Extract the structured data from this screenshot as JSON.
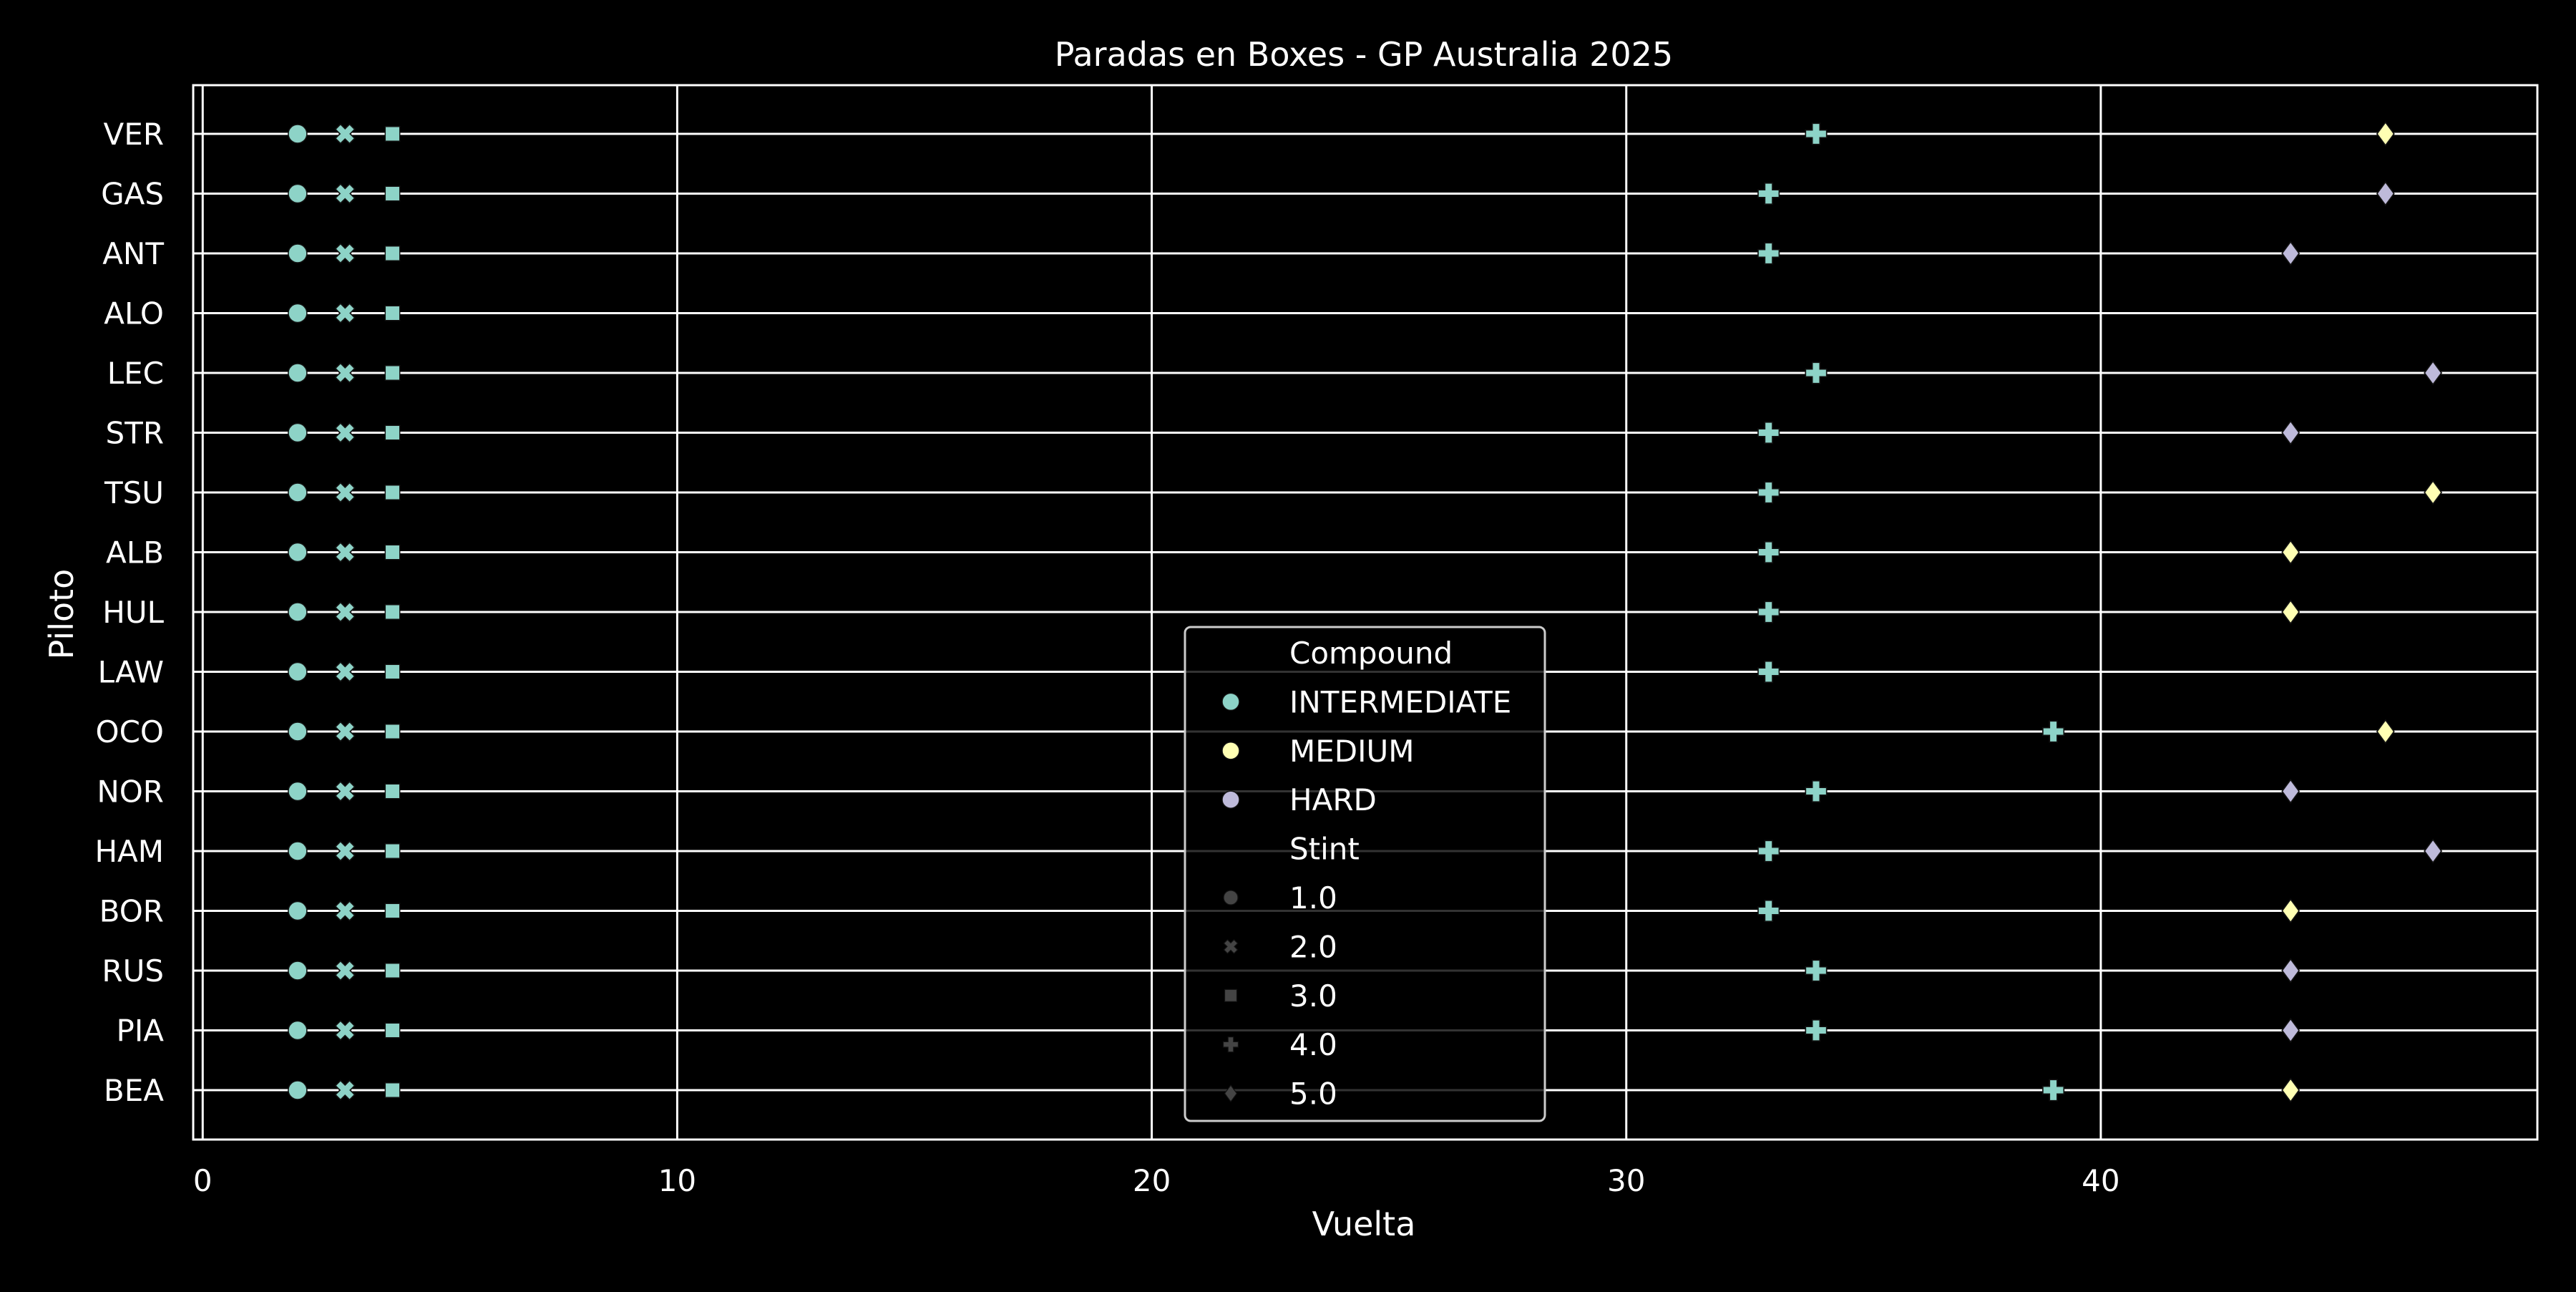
{
  "chart_data": {
    "type": "scatter",
    "title": "Paradas en Boxes - GP Australia 2025",
    "xlabel": "Vuelta",
    "ylabel": "Piloto",
    "xlim": [
      -0.2,
      49.2
    ],
    "xticks": [
      0,
      10,
      20,
      30,
      40
    ],
    "grid": true,
    "legend_placement": "lower-center",
    "categories": [
      "VER",
      "GAS",
      "ANT",
      "ALO",
      "LEC",
      "STR",
      "TSU",
      "ALB",
      "HUL",
      "LAW",
      "OCO",
      "NOR",
      "HAM",
      "BOR",
      "RUS",
      "PIA",
      "BEA"
    ],
    "colors": {
      "INTERMEDIATE": "#8dd3c7",
      "MEDIUM": "#ffffb3",
      "HARD": "#bebada",
      "background": "#000000",
      "foreground": "#ffffff"
    },
    "legend": {
      "compound_title": "Compound",
      "compounds": [
        "INTERMEDIATE",
        "MEDIUM",
        "HARD"
      ],
      "stint_title": "Stint",
      "stints": [
        {
          "label": "1.0",
          "marker": "circle"
        },
        {
          "label": "2.0",
          "marker": "x"
        },
        {
          "label": "3.0",
          "marker": "square"
        },
        {
          "label": "4.0",
          "marker": "plus"
        },
        {
          "label": "5.0",
          "marker": "diamond"
        }
      ]
    },
    "points": [
      {
        "driver": "VER",
        "lap": 2,
        "stint": 1,
        "compound": "INTERMEDIATE"
      },
      {
        "driver": "VER",
        "lap": 3,
        "stint": 2,
        "compound": "INTERMEDIATE"
      },
      {
        "driver": "VER",
        "lap": 4,
        "stint": 3,
        "compound": "INTERMEDIATE"
      },
      {
        "driver": "VER",
        "lap": 34,
        "stint": 4,
        "compound": "INTERMEDIATE"
      },
      {
        "driver": "VER",
        "lap": 46,
        "stint": 5,
        "compound": "MEDIUM"
      },
      {
        "driver": "GAS",
        "lap": 2,
        "stint": 1,
        "compound": "INTERMEDIATE"
      },
      {
        "driver": "GAS",
        "lap": 3,
        "stint": 2,
        "compound": "INTERMEDIATE"
      },
      {
        "driver": "GAS",
        "lap": 4,
        "stint": 3,
        "compound": "INTERMEDIATE"
      },
      {
        "driver": "GAS",
        "lap": 33,
        "stint": 4,
        "compound": "INTERMEDIATE"
      },
      {
        "driver": "GAS",
        "lap": 46,
        "stint": 5,
        "compound": "HARD"
      },
      {
        "driver": "ANT",
        "lap": 2,
        "stint": 1,
        "compound": "INTERMEDIATE"
      },
      {
        "driver": "ANT",
        "lap": 3,
        "stint": 2,
        "compound": "INTERMEDIATE"
      },
      {
        "driver": "ANT",
        "lap": 4,
        "stint": 3,
        "compound": "INTERMEDIATE"
      },
      {
        "driver": "ANT",
        "lap": 33,
        "stint": 4,
        "compound": "INTERMEDIATE"
      },
      {
        "driver": "ANT",
        "lap": 44,
        "stint": 5,
        "compound": "HARD"
      },
      {
        "driver": "ALO",
        "lap": 2,
        "stint": 1,
        "compound": "INTERMEDIATE"
      },
      {
        "driver": "ALO",
        "lap": 3,
        "stint": 2,
        "compound": "INTERMEDIATE"
      },
      {
        "driver": "ALO",
        "lap": 4,
        "stint": 3,
        "compound": "INTERMEDIATE"
      },
      {
        "driver": "LEC",
        "lap": 2,
        "stint": 1,
        "compound": "INTERMEDIATE"
      },
      {
        "driver": "LEC",
        "lap": 3,
        "stint": 2,
        "compound": "INTERMEDIATE"
      },
      {
        "driver": "LEC",
        "lap": 4,
        "stint": 3,
        "compound": "INTERMEDIATE"
      },
      {
        "driver": "LEC",
        "lap": 34,
        "stint": 4,
        "compound": "INTERMEDIATE"
      },
      {
        "driver": "LEC",
        "lap": 47,
        "stint": 5,
        "compound": "HARD"
      },
      {
        "driver": "STR",
        "lap": 2,
        "stint": 1,
        "compound": "INTERMEDIATE"
      },
      {
        "driver": "STR",
        "lap": 3,
        "stint": 2,
        "compound": "INTERMEDIATE"
      },
      {
        "driver": "STR",
        "lap": 4,
        "stint": 3,
        "compound": "INTERMEDIATE"
      },
      {
        "driver": "STR",
        "lap": 33,
        "stint": 4,
        "compound": "INTERMEDIATE"
      },
      {
        "driver": "STR",
        "lap": 44,
        "stint": 5,
        "compound": "HARD"
      },
      {
        "driver": "TSU",
        "lap": 2,
        "stint": 1,
        "compound": "INTERMEDIATE"
      },
      {
        "driver": "TSU",
        "lap": 3,
        "stint": 2,
        "compound": "INTERMEDIATE"
      },
      {
        "driver": "TSU",
        "lap": 4,
        "stint": 3,
        "compound": "INTERMEDIATE"
      },
      {
        "driver": "TSU",
        "lap": 33,
        "stint": 4,
        "compound": "INTERMEDIATE"
      },
      {
        "driver": "TSU",
        "lap": 47,
        "stint": 5,
        "compound": "MEDIUM"
      },
      {
        "driver": "ALB",
        "lap": 2,
        "stint": 1,
        "compound": "INTERMEDIATE"
      },
      {
        "driver": "ALB",
        "lap": 3,
        "stint": 2,
        "compound": "INTERMEDIATE"
      },
      {
        "driver": "ALB",
        "lap": 4,
        "stint": 3,
        "compound": "INTERMEDIATE"
      },
      {
        "driver": "ALB",
        "lap": 33,
        "stint": 4,
        "compound": "INTERMEDIATE"
      },
      {
        "driver": "ALB",
        "lap": 44,
        "stint": 5,
        "compound": "MEDIUM"
      },
      {
        "driver": "HUL",
        "lap": 2,
        "stint": 1,
        "compound": "INTERMEDIATE"
      },
      {
        "driver": "HUL",
        "lap": 3,
        "stint": 2,
        "compound": "INTERMEDIATE"
      },
      {
        "driver": "HUL",
        "lap": 4,
        "stint": 3,
        "compound": "INTERMEDIATE"
      },
      {
        "driver": "HUL",
        "lap": 33,
        "stint": 4,
        "compound": "INTERMEDIATE"
      },
      {
        "driver": "HUL",
        "lap": 44,
        "stint": 5,
        "compound": "MEDIUM"
      },
      {
        "driver": "LAW",
        "lap": 2,
        "stint": 1,
        "compound": "INTERMEDIATE"
      },
      {
        "driver": "LAW",
        "lap": 3,
        "stint": 2,
        "compound": "INTERMEDIATE"
      },
      {
        "driver": "LAW",
        "lap": 4,
        "stint": 3,
        "compound": "INTERMEDIATE"
      },
      {
        "driver": "LAW",
        "lap": 33,
        "stint": 4,
        "compound": "INTERMEDIATE"
      },
      {
        "driver": "OCO",
        "lap": 2,
        "stint": 1,
        "compound": "INTERMEDIATE"
      },
      {
        "driver": "OCO",
        "lap": 3,
        "stint": 2,
        "compound": "INTERMEDIATE"
      },
      {
        "driver": "OCO",
        "lap": 4,
        "stint": 3,
        "compound": "INTERMEDIATE"
      },
      {
        "driver": "OCO",
        "lap": 39,
        "stint": 4,
        "compound": "INTERMEDIATE"
      },
      {
        "driver": "OCO",
        "lap": 46,
        "stint": 5,
        "compound": "MEDIUM"
      },
      {
        "driver": "NOR",
        "lap": 2,
        "stint": 1,
        "compound": "INTERMEDIATE"
      },
      {
        "driver": "NOR",
        "lap": 3,
        "stint": 2,
        "compound": "INTERMEDIATE"
      },
      {
        "driver": "NOR",
        "lap": 4,
        "stint": 3,
        "compound": "INTERMEDIATE"
      },
      {
        "driver": "NOR",
        "lap": 34,
        "stint": 4,
        "compound": "INTERMEDIATE"
      },
      {
        "driver": "NOR",
        "lap": 44,
        "stint": 5,
        "compound": "HARD"
      },
      {
        "driver": "HAM",
        "lap": 2,
        "stint": 1,
        "compound": "INTERMEDIATE"
      },
      {
        "driver": "HAM",
        "lap": 3,
        "stint": 2,
        "compound": "INTERMEDIATE"
      },
      {
        "driver": "HAM",
        "lap": 4,
        "stint": 3,
        "compound": "INTERMEDIATE"
      },
      {
        "driver": "HAM",
        "lap": 33,
        "stint": 4,
        "compound": "INTERMEDIATE"
      },
      {
        "driver": "HAM",
        "lap": 47,
        "stint": 5,
        "compound": "HARD"
      },
      {
        "driver": "BOR",
        "lap": 2,
        "stint": 1,
        "compound": "INTERMEDIATE"
      },
      {
        "driver": "BOR",
        "lap": 3,
        "stint": 2,
        "compound": "INTERMEDIATE"
      },
      {
        "driver": "BOR",
        "lap": 4,
        "stint": 3,
        "compound": "INTERMEDIATE"
      },
      {
        "driver": "BOR",
        "lap": 33,
        "stint": 4,
        "compound": "INTERMEDIATE"
      },
      {
        "driver": "BOR",
        "lap": 44,
        "stint": 5,
        "compound": "MEDIUM"
      },
      {
        "driver": "RUS",
        "lap": 2,
        "stint": 1,
        "compound": "INTERMEDIATE"
      },
      {
        "driver": "RUS",
        "lap": 3,
        "stint": 2,
        "compound": "INTERMEDIATE"
      },
      {
        "driver": "RUS",
        "lap": 4,
        "stint": 3,
        "compound": "INTERMEDIATE"
      },
      {
        "driver": "RUS",
        "lap": 34,
        "stint": 4,
        "compound": "INTERMEDIATE"
      },
      {
        "driver": "RUS",
        "lap": 44,
        "stint": 5,
        "compound": "HARD"
      },
      {
        "driver": "PIA",
        "lap": 2,
        "stint": 1,
        "compound": "INTERMEDIATE"
      },
      {
        "driver": "PIA",
        "lap": 3,
        "stint": 2,
        "compound": "INTERMEDIATE"
      },
      {
        "driver": "PIA",
        "lap": 4,
        "stint": 3,
        "compound": "INTERMEDIATE"
      },
      {
        "driver": "PIA",
        "lap": 34,
        "stint": 4,
        "compound": "INTERMEDIATE"
      },
      {
        "driver": "PIA",
        "lap": 44,
        "stint": 5,
        "compound": "HARD"
      },
      {
        "driver": "BEA",
        "lap": 2,
        "stint": 1,
        "compound": "INTERMEDIATE"
      },
      {
        "driver": "BEA",
        "lap": 3,
        "stint": 2,
        "compound": "INTERMEDIATE"
      },
      {
        "driver": "BEA",
        "lap": 4,
        "stint": 3,
        "compound": "INTERMEDIATE"
      },
      {
        "driver": "BEA",
        "lap": 39,
        "stint": 4,
        "compound": "INTERMEDIATE"
      },
      {
        "driver": "BEA",
        "lap": 44,
        "stint": 5,
        "compound": "MEDIUM"
      }
    ]
  }
}
